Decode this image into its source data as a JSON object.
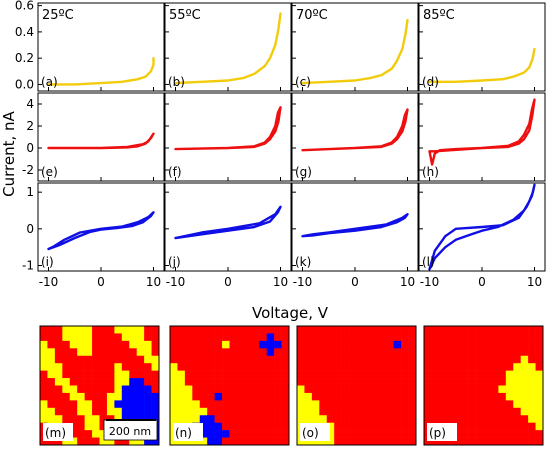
{
  "figure": {
    "ylabel": "Current, nA",
    "xlabel": "Voltage, V",
    "columns": [
      "25ºC",
      "55ºC",
      "70ºC",
      "85ºC"
    ],
    "xticks": [
      "-10",
      "0",
      "10"
    ],
    "scalebar": "200 nm",
    "map_colors": {
      "red": "#ff0000",
      "yellow": "#ffff00",
      "blue": "#0000ff"
    }
  },
  "chart_data": [
    {
      "type": "line",
      "row": "yellow",
      "color": "#f2cc0c",
      "xlim": [
        -12,
        12
      ],
      "ylim": [
        -0.05,
        0.62
      ],
      "yticks": [
        "0.0",
        "0.2",
        "0.4",
        "0.6"
      ],
      "ytick_values": [
        0,
        0.2,
        0.4,
        0.6
      ],
      "panels": [
        {
          "label": "(a)",
          "x": [
            -10,
            -5,
            0,
            4,
            7,
            8.5,
            9.5,
            10,
            10
          ],
          "y": [
            0.0,
            0.0,
            0.01,
            0.02,
            0.04,
            0.06,
            0.1,
            0.15,
            0.2
          ]
        },
        {
          "label": "(b)",
          "x": [
            -10,
            -5,
            0,
            3,
            5,
            7,
            8,
            9,
            9.6,
            10
          ],
          "y": [
            0.01,
            0.02,
            0.03,
            0.05,
            0.08,
            0.14,
            0.2,
            0.3,
            0.42,
            0.54
          ]
        },
        {
          "label": "(c)",
          "x": [
            -10,
            -5,
            0,
            3,
            5,
            7,
            8,
            9,
            9.6,
            10
          ],
          "y": [
            0.01,
            0.02,
            0.03,
            0.05,
            0.07,
            0.12,
            0.18,
            0.27,
            0.38,
            0.49
          ]
        },
        {
          "label": "(d)",
          "x": [
            -10,
            -5,
            0,
            4,
            6,
            8,
            9,
            9.6,
            10
          ],
          "y": [
            0.02,
            0.02,
            0.03,
            0.04,
            0.06,
            0.09,
            0.13,
            0.19,
            0.27
          ]
        }
      ]
    },
    {
      "type": "line",
      "row": "red",
      "color": "#ee0f0f",
      "xlim": [
        -12,
        12
      ],
      "ylim": [
        -3,
        5
      ],
      "yticks": [
        "-2",
        "0",
        "2",
        "4"
      ],
      "ytick_values": [
        -2,
        0,
        2,
        4
      ],
      "panels": [
        {
          "label": "(e)",
          "x": [
            -10,
            -5,
            0,
            5,
            7,
            8.5,
            9.5,
            10,
            9,
            8,
            5,
            0,
            -10
          ],
          "y": [
            0.0,
            0.0,
            0.0,
            0.05,
            0.15,
            0.4,
            0.9,
            1.3,
            0.6,
            0.35,
            0.1,
            0.0,
            0.0
          ]
        },
        {
          "label": "(f)",
          "x": [
            -10,
            -5,
            0,
            5,
            7,
            8,
            9,
            9.6,
            10,
            9.5,
            9,
            8,
            7,
            5,
            0,
            -10
          ],
          "y": [
            -0.1,
            -0.05,
            0.0,
            0.1,
            0.4,
            0.8,
            1.5,
            2.4,
            3.7,
            3.2,
            2.0,
            1.0,
            0.5,
            0.15,
            0.0,
            -0.1
          ]
        },
        {
          "label": "(g)",
          "x": [
            -10,
            -5,
            0,
            5,
            7,
            8,
            9,
            9.6,
            10,
            9.5,
            9,
            8,
            7,
            5,
            0,
            -10
          ],
          "y": [
            -0.2,
            -0.1,
            0.0,
            0.1,
            0.4,
            0.8,
            1.5,
            2.4,
            3.5,
            3.0,
            2.0,
            1.0,
            0.5,
            0.15,
            0.0,
            -0.2
          ]
        },
        {
          "label": "(h)",
          "x": [
            -10,
            -9.5,
            -9,
            -8,
            -5,
            0,
            5,
            7,
            8,
            9,
            9.6,
            10,
            9.5,
            9,
            8,
            7,
            5,
            0,
            -9,
            -10
          ],
          "y": [
            -0.3,
            -1.5,
            -0.5,
            -0.2,
            -0.1,
            0.0,
            0.1,
            0.4,
            0.8,
            1.6,
            3.0,
            4.4,
            3.5,
            2.2,
            1.2,
            0.6,
            0.2,
            0.0,
            -0.3,
            -0.3
          ]
        }
      ]
    },
    {
      "type": "line",
      "row": "blue",
      "color": "#0f0fe6",
      "xlim": [
        -12,
        12
      ],
      "ylim": [
        -1.15,
        1.25
      ],
      "yticks": [
        "-1",
        "0",
        "1"
      ],
      "ytick_values": [
        -1,
        0,
        1
      ],
      "panels": [
        {
          "label": "(i)",
          "x": [
            -10,
            -8,
            -5,
            -2,
            0,
            3,
            6,
            8,
            9.5,
            10,
            9,
            7,
            4,
            0,
            -4,
            -7,
            -9,
            -10
          ],
          "y": [
            -0.55,
            -0.45,
            -0.25,
            -0.08,
            -0.02,
            0.02,
            0.08,
            0.18,
            0.35,
            0.45,
            0.32,
            0.18,
            0.06,
            0.0,
            -0.1,
            -0.3,
            -0.48,
            -0.55
          ]
        },
        {
          "label": "(j)",
          "x": [
            -10,
            -5,
            0,
            5,
            8,
            9.5,
            10,
            9,
            6,
            0,
            -5,
            -10
          ],
          "y": [
            -0.25,
            -0.15,
            -0.05,
            0.05,
            0.2,
            0.45,
            0.6,
            0.4,
            0.15,
            0.0,
            -0.1,
            -0.25
          ]
        },
        {
          "label": "(k)",
          "x": [
            -10,
            -8,
            -5,
            0,
            5,
            8,
            9.5,
            10,
            9,
            6,
            0,
            -5,
            -8,
            -10
          ],
          "y": [
            -0.2,
            -0.18,
            -0.12,
            -0.05,
            0.05,
            0.18,
            0.3,
            0.4,
            0.3,
            0.12,
            0.0,
            -0.1,
            -0.15,
            -0.2
          ]
        },
        {
          "label": "(l)",
          "x": [
            -10,
            -9,
            -7,
            -5,
            -2,
            0,
            3,
            6,
            8,
            9,
            9.7,
            10,
            9.5,
            8.5,
            7,
            4,
            0,
            -3,
            -5,
            -7,
            -9,
            -10
          ],
          "y": [
            -1.1,
            -0.8,
            -0.5,
            -0.3,
            -0.15,
            -0.05,
            0.05,
            0.25,
            0.5,
            0.75,
            1.0,
            1.2,
            0.9,
            0.6,
            0.3,
            0.1,
            0.05,
            0.02,
            0.0,
            -0.2,
            -0.6,
            -1.1
          ]
        }
      ]
    },
    {
      "type": "heatmap",
      "legend": "none",
      "palette": {
        "R": "#ff0000",
        "Y": "#ffff00",
        "B": "#0000ff"
      },
      "maps": [
        {
          "label": "(m)",
          "rows": [
            "RRRYYYYRRRYYYYRR",
            "RRRYYYYRRRRYYYRR",
            "YRRRYYYRRRRRYYYR",
            "YYRRRYYRRRRRRYYR",
            "YYRRRRRRRRRRRRYY",
            "YYYRRRRRRRYRRRRY",
            "RYYRRRRRRRYYRRRR",
            "RRYYRRRRRRYYBBRR",
            "RRRYYRRRRRYBBBBR",
            "RRRRYYRRRYYBBBBB",
            "YRRRRYYRRYBBBBBB",
            "YYRRRYYRRYYBBBBB",
            "YYYRRRYYRRYBBBBB",
            "RYYRRRYYRRYYBBBB",
            "RRYYRRRYYRRYYBBB",
            "RRRYYRRRYYRRYYBB"
          ]
        },
        {
          "label": "(n)",
          "rows": [
            "RRRRRRRRRRRRRRRR",
            "RRRRRRRRRRRRRBRR",
            "RRRRRRRYRRRRBBBR",
            "RRRRRRRRRRRRRBRR",
            "RRRRRRRRRRRRRRRR",
            "YRRRRRRRRRRRRRRR",
            "YYRRRRRRRRRRRRRR",
            "YYRRRRRRRRRRRRRR",
            "YYYRRRRRRRRRRRRR",
            "YYYRRRBRRRRRRRRR",
            "YYYYRRRRRRRRRRRR",
            "YYYYYRRRRRRRRRRR",
            "YYYYBBRRRRRRRRRR",
            "YYYBBBBRRRRRRRRR",
            "YYYYBBBBRRRRRRRR",
            "YYYYYBBRRRRRRRRR"
          ]
        },
        {
          "label": "(o)",
          "rows": [
            "RRRRRRRRRRRRRRRR",
            "RRRRRRRRRRRRRRRR",
            "RRRRRRRRRRRRRBRR",
            "RRRRRRRRRRRRRRRR",
            "RRRRRRRRRRRRRRRR",
            "RRRRRRRRRRRRRRRR",
            "RRRRRRRRRRRRRRRR",
            "RRRRRRRRRRRRRRRR",
            "YRRRRRRRRRRRRRRR",
            "YYRRRRRRRRRRRRRR",
            "YYYRRRRRRRRRRRRR",
            "YYYRRRRRRRRRRRRR",
            "YYYYRRRRRRRRRRRR",
            "YYYYYRRRRRRRRRRR",
            "YYYBYRRRRRRRRRRR",
            "YYYYYRRRRRRRRRRR"
          ]
        },
        {
          "label": "(p)",
          "rows": [
            "RRRRRRRRRRRRRRRR",
            "RRRRRRRRRRRRRRRR",
            "RRRRRRRRRRRRRRRR",
            "RRRRRRRRRRRRRRRR",
            "RRRRRRRRRRRRRYRR",
            "RRRRRRRRRRRRYYYR",
            "RRRRRRRRRRRYYYYY",
            "RRRRRRRRRRRYYYYY",
            "RRRRRRRRRRYYYYYY",
            "RRRRRRRRRRRYYYYY",
            "RRRRRRRRRRRRYYYY",
            "RRRRRRRRRRRRRYYY",
            "RRRRRRRRRRRRRRYY",
            "RRRRRRRRRRRRRRRY",
            "RRRRRRRRRRRRRRRR",
            "RRRRRRRRRRRRRRRR"
          ]
        }
      ]
    }
  ]
}
